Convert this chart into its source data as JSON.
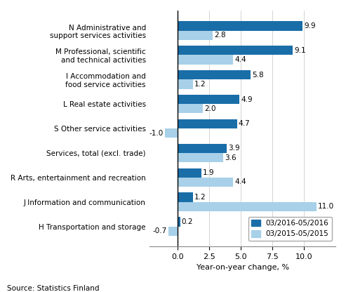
{
  "categories": [
    "N Administrative and\nsupport services activities",
    "M Professional, scientific\nand technical activities",
    "I Accommodation and\nfood service activities",
    "L Real estate activities",
    "S Other service activities",
    "Services, total (excl. trade)",
    "R Arts, entertainment and recreation",
    "J Information and communication",
    "H Transportation and storage"
  ],
  "series_2016": [
    9.9,
    9.1,
    5.8,
    4.9,
    4.7,
    3.9,
    1.9,
    1.2,
    0.2
  ],
  "series_2015": [
    2.8,
    4.4,
    1.2,
    2.0,
    -1.0,
    3.6,
    4.4,
    11.0,
    -0.7
  ],
  "color_2016": "#1a6ea8",
  "color_2015": "#a8d0e8",
  "xlabel": "Year-on-year change, %",
  "legend_2016": "03/2016-05/2016",
  "legend_2015": "03/2015-05/2015",
  "source": "Source: Statistics Finland",
  "xlim": [
    -2.2,
    12.5
  ],
  "xticks": [
    0.0,
    2.5,
    5.0,
    7.5,
    10.0
  ]
}
